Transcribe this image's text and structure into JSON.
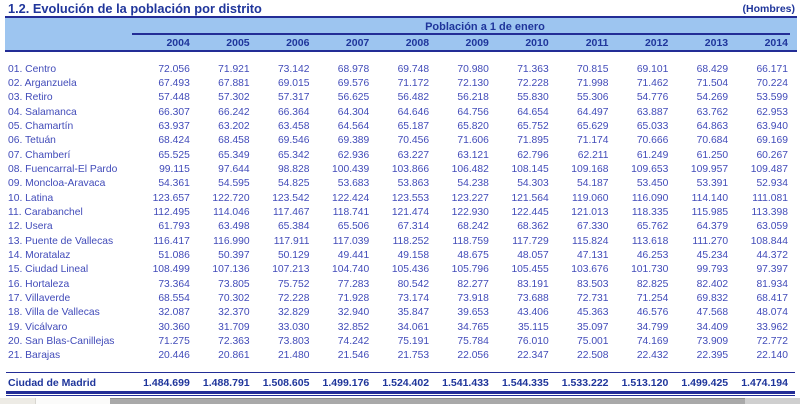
{
  "header": {
    "title": "1.2. Evolución de la población por distrito",
    "right_note": "(Hombres)",
    "band_label": "Población a 1 de enero"
  },
  "colors": {
    "navy": "#1f359b",
    "rule_navy": "#232d96",
    "data_text_blue": "#414BB9",
    "band_light_blue": "#9DC5F0"
  },
  "table": {
    "years": [
      "2004",
      "2005",
      "2006",
      "2007",
      "2008",
      "2009",
      "2010",
      "2011",
      "2012",
      "2013",
      "2014"
    ],
    "rows": [
      {
        "label": "01. Centro",
        "values": [
          "72.056",
          "71.921",
          "73.142",
          "68.978",
          "69.748",
          "70.980",
          "71.363",
          "70.815",
          "69.101",
          "68.429",
          "66.171"
        ]
      },
      {
        "label": "02. Arganzuela",
        "values": [
          "67.493",
          "67.881",
          "69.015",
          "69.576",
          "71.172",
          "72.130",
          "72.228",
          "71.998",
          "71.462",
          "71.504",
          "70.224"
        ]
      },
      {
        "label": "03. Retiro",
        "values": [
          "57.448",
          "57.302",
          "57.317",
          "56.625",
          "56.482",
          "56.218",
          "55.830",
          "55.306",
          "54.776",
          "54.269",
          "53.599"
        ]
      },
      {
        "label": "04. Salamanca",
        "values": [
          "66.307",
          "66.242",
          "66.364",
          "64.304",
          "64.646",
          "64.756",
          "64.654",
          "64.497",
          "63.887",
          "63.762",
          "62.953"
        ]
      },
      {
        "label": "05. Chamartín",
        "values": [
          "63.937",
          "63.202",
          "63.458",
          "64.564",
          "65.187",
          "65.820",
          "65.752",
          "65.629",
          "65.033",
          "64.863",
          "63.940"
        ]
      },
      {
        "label": "06. Tetuán",
        "values": [
          "68.424",
          "68.458",
          "69.546",
          "69.389",
          "70.456",
          "71.606",
          "71.895",
          "71.174",
          "70.666",
          "70.684",
          "69.169"
        ]
      },
      {
        "label": "07. Chamberí",
        "values": [
          "65.525",
          "65.349",
          "65.342",
          "62.936",
          "63.227",
          "63.121",
          "62.796",
          "62.211",
          "61.249",
          "61.250",
          "60.267"
        ]
      },
      {
        "label": "08. Fuencarral-El Pardo",
        "values": [
          "99.115",
          "97.644",
          "98.828",
          "100.439",
          "103.866",
          "106.482",
          "108.145",
          "109.168",
          "109.653",
          "109.957",
          "109.487"
        ]
      },
      {
        "label": "09. Moncloa-Aravaca",
        "values": [
          "54.361",
          "54.595",
          "54.825",
          "53.683",
          "53.863",
          "54.238",
          "54.303",
          "54.187",
          "53.450",
          "53.391",
          "52.934"
        ]
      },
      {
        "label": "10. Latina",
        "values": [
          "123.657",
          "122.720",
          "123.542",
          "122.424",
          "123.553",
          "123.227",
          "121.564",
          "119.060",
          "116.090",
          "114.140",
          "111.081"
        ]
      },
      {
        "label": "11. Carabanchel",
        "values": [
          "112.495",
          "114.046",
          "117.467",
          "118.741",
          "121.474",
          "122.930",
          "122.445",
          "121.013",
          "118.335",
          "115.985",
          "113.398"
        ]
      },
      {
        "label": "12. Usera",
        "values": [
          "61.793",
          "63.498",
          "65.384",
          "65.506",
          "67.314",
          "68.242",
          "68.362",
          "67.330",
          "65.762",
          "64.379",
          "63.059"
        ]
      },
      {
        "label": "13. Puente de Vallecas",
        "values": [
          "116.417",
          "116.990",
          "117.911",
          "117.039",
          "118.252",
          "118.759",
          "117.729",
          "115.824",
          "113.618",
          "111.270",
          "108.844"
        ]
      },
      {
        "label": "14. Moratalaz",
        "values": [
          "51.086",
          "50.397",
          "50.129",
          "49.441",
          "49.158",
          "48.675",
          "48.057",
          "47.131",
          "46.253",
          "45.234",
          "44.372"
        ]
      },
      {
        "label": "15. Ciudad Lineal",
        "values": [
          "108.499",
          "107.136",
          "107.213",
          "104.740",
          "105.436",
          "105.796",
          "105.455",
          "103.676",
          "101.730",
          "99.793",
          "97.397"
        ]
      },
      {
        "label": "16. Hortaleza",
        "values": [
          "73.364",
          "73.805",
          "75.752",
          "77.283",
          "80.542",
          "82.277",
          "83.191",
          "83.503",
          "82.825",
          "82.402",
          "81.934"
        ]
      },
      {
        "label": "17. Villaverde",
        "values": [
          "68.554",
          "70.302",
          "72.228",
          "71.928",
          "73.174",
          "73.918",
          "73.688",
          "72.731",
          "71.254",
          "69.832",
          "68.417"
        ]
      },
      {
        "label": "18. Villa de Vallecas",
        "values": [
          "32.087",
          "32.370",
          "32.829",
          "32.940",
          "35.847",
          "39.653",
          "43.406",
          "45.363",
          "46.576",
          "47.568",
          "48.074"
        ]
      },
      {
        "label": "19. Vicálvaro",
        "values": [
          "30.360",
          "31.709",
          "33.030",
          "32.852",
          "34.061",
          "34.765",
          "35.115",
          "35.097",
          "34.799",
          "34.409",
          "33.962"
        ]
      },
      {
        "label": "20. San Blas-Canillejas",
        "values": [
          "71.275",
          "72.363",
          "73.803",
          "74.242",
          "75.191",
          "75.784",
          "76.010",
          "75.001",
          "74.169",
          "73.909",
          "72.772"
        ]
      },
      {
        "label": "21. Barajas",
        "values": [
          "20.446",
          "20.861",
          "21.480",
          "21.546",
          "21.753",
          "22.056",
          "22.347",
          "22.508",
          "22.432",
          "22.395",
          "22.140"
        ]
      }
    ],
    "total": {
      "label": "Ciudad de Madrid",
      "values": [
        "1.484.699",
        "1.488.791",
        "1.508.605",
        "1.499.176",
        "1.524.402",
        "1.541.433",
        "1.544.335",
        "1.533.222",
        "1.513.120",
        "1.499.425",
        "1.474.194"
      ]
    }
  }
}
